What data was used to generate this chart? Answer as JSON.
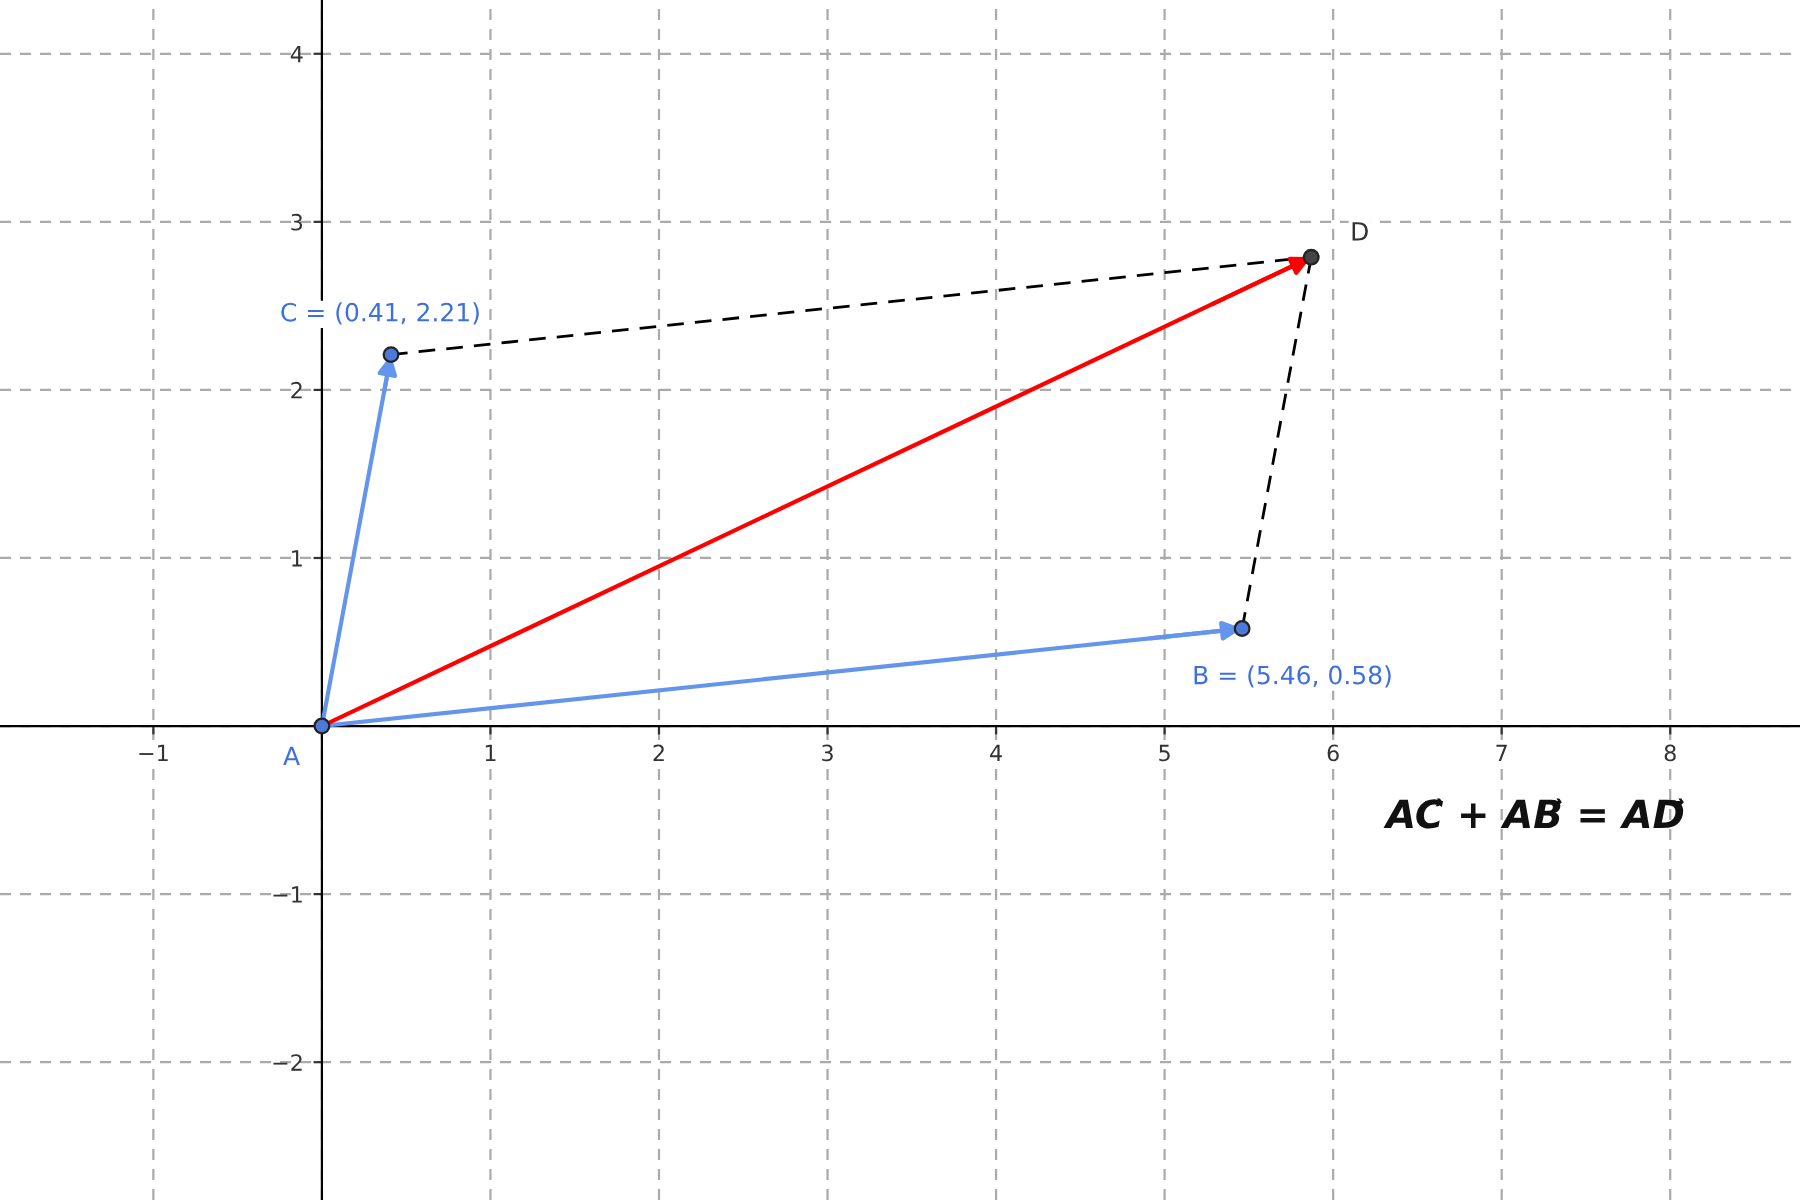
{
  "chart_data": {
    "type": "line",
    "series": [
      {
        "color": "#6495ed",
        "x": [
          0,
          0.41
        ],
        "values": [
          0,
          2.21
        ],
        "line_style": "solid",
        "marker": "none"
      },
      {
        "color": "#6495ed",
        "x": [
          0,
          5.46
        ],
        "values": [
          0,
          0.58
        ],
        "line_style": "solid",
        "marker": "none"
      },
      {
        "color": "#ff0000",
        "x": [
          0,
          5.87
        ],
        "values": [
          0,
          2.79
        ],
        "line_style": "solid",
        "marker": "none"
      },
      {
        "color": "#000000",
        "x": [
          0.41,
          5.87
        ],
        "values": [
          2.21,
          2.79
        ],
        "line_style": "dashed",
        "marker": "none"
      },
      {
        "color": "#000000",
        "x": [
          5.46,
          5.87
        ],
        "values": [
          0.58,
          2.79
        ],
        "line_style": "dashed",
        "marker": "none"
      },
      {
        "type": "scatter",
        "x": [
          0,
          5.46,
          0.41,
          5.87
        ],
        "values": [
          0,
          0.58,
          2.21,
          2.79
        ],
        "colors": [
          "#4d79d9",
          "#4d79d9",
          "#4d79d9",
          "#444444"
        ],
        "marker": "circle"
      }
    ],
    "xlim": [
      -1.91,
      8.77
    ],
    "ylim": [
      -2.82,
      4.32
    ],
    "xticks": [
      -1,
      {
        "value": 0,
        "label": null
      },
      1,
      2,
      3,
      4,
      5,
      6,
      7,
      8
    ],
    "yticks": [
      -2,
      -1,
      {
        "value": 0,
        "label": null
      },
      1,
      2,
      3,
      4
    ],
    "grid": true,
    "legend": false,
    "annotations": [
      {
        "text": "A",
        "x": 0,
        "y": 0
      },
      {
        "text": "B = (5.46, 0.58)",
        "x": 5.46,
        "y": 0.58
      },
      {
        "text": "C = (0.41, 2.21)",
        "x": 0.41,
        "y": 2.21
      },
      {
        "text": "D",
        "x": 5.87,
        "y": 2.79
      },
      "AC⃗ + AB⃗ = AD⃗"
    ]
  }
}
